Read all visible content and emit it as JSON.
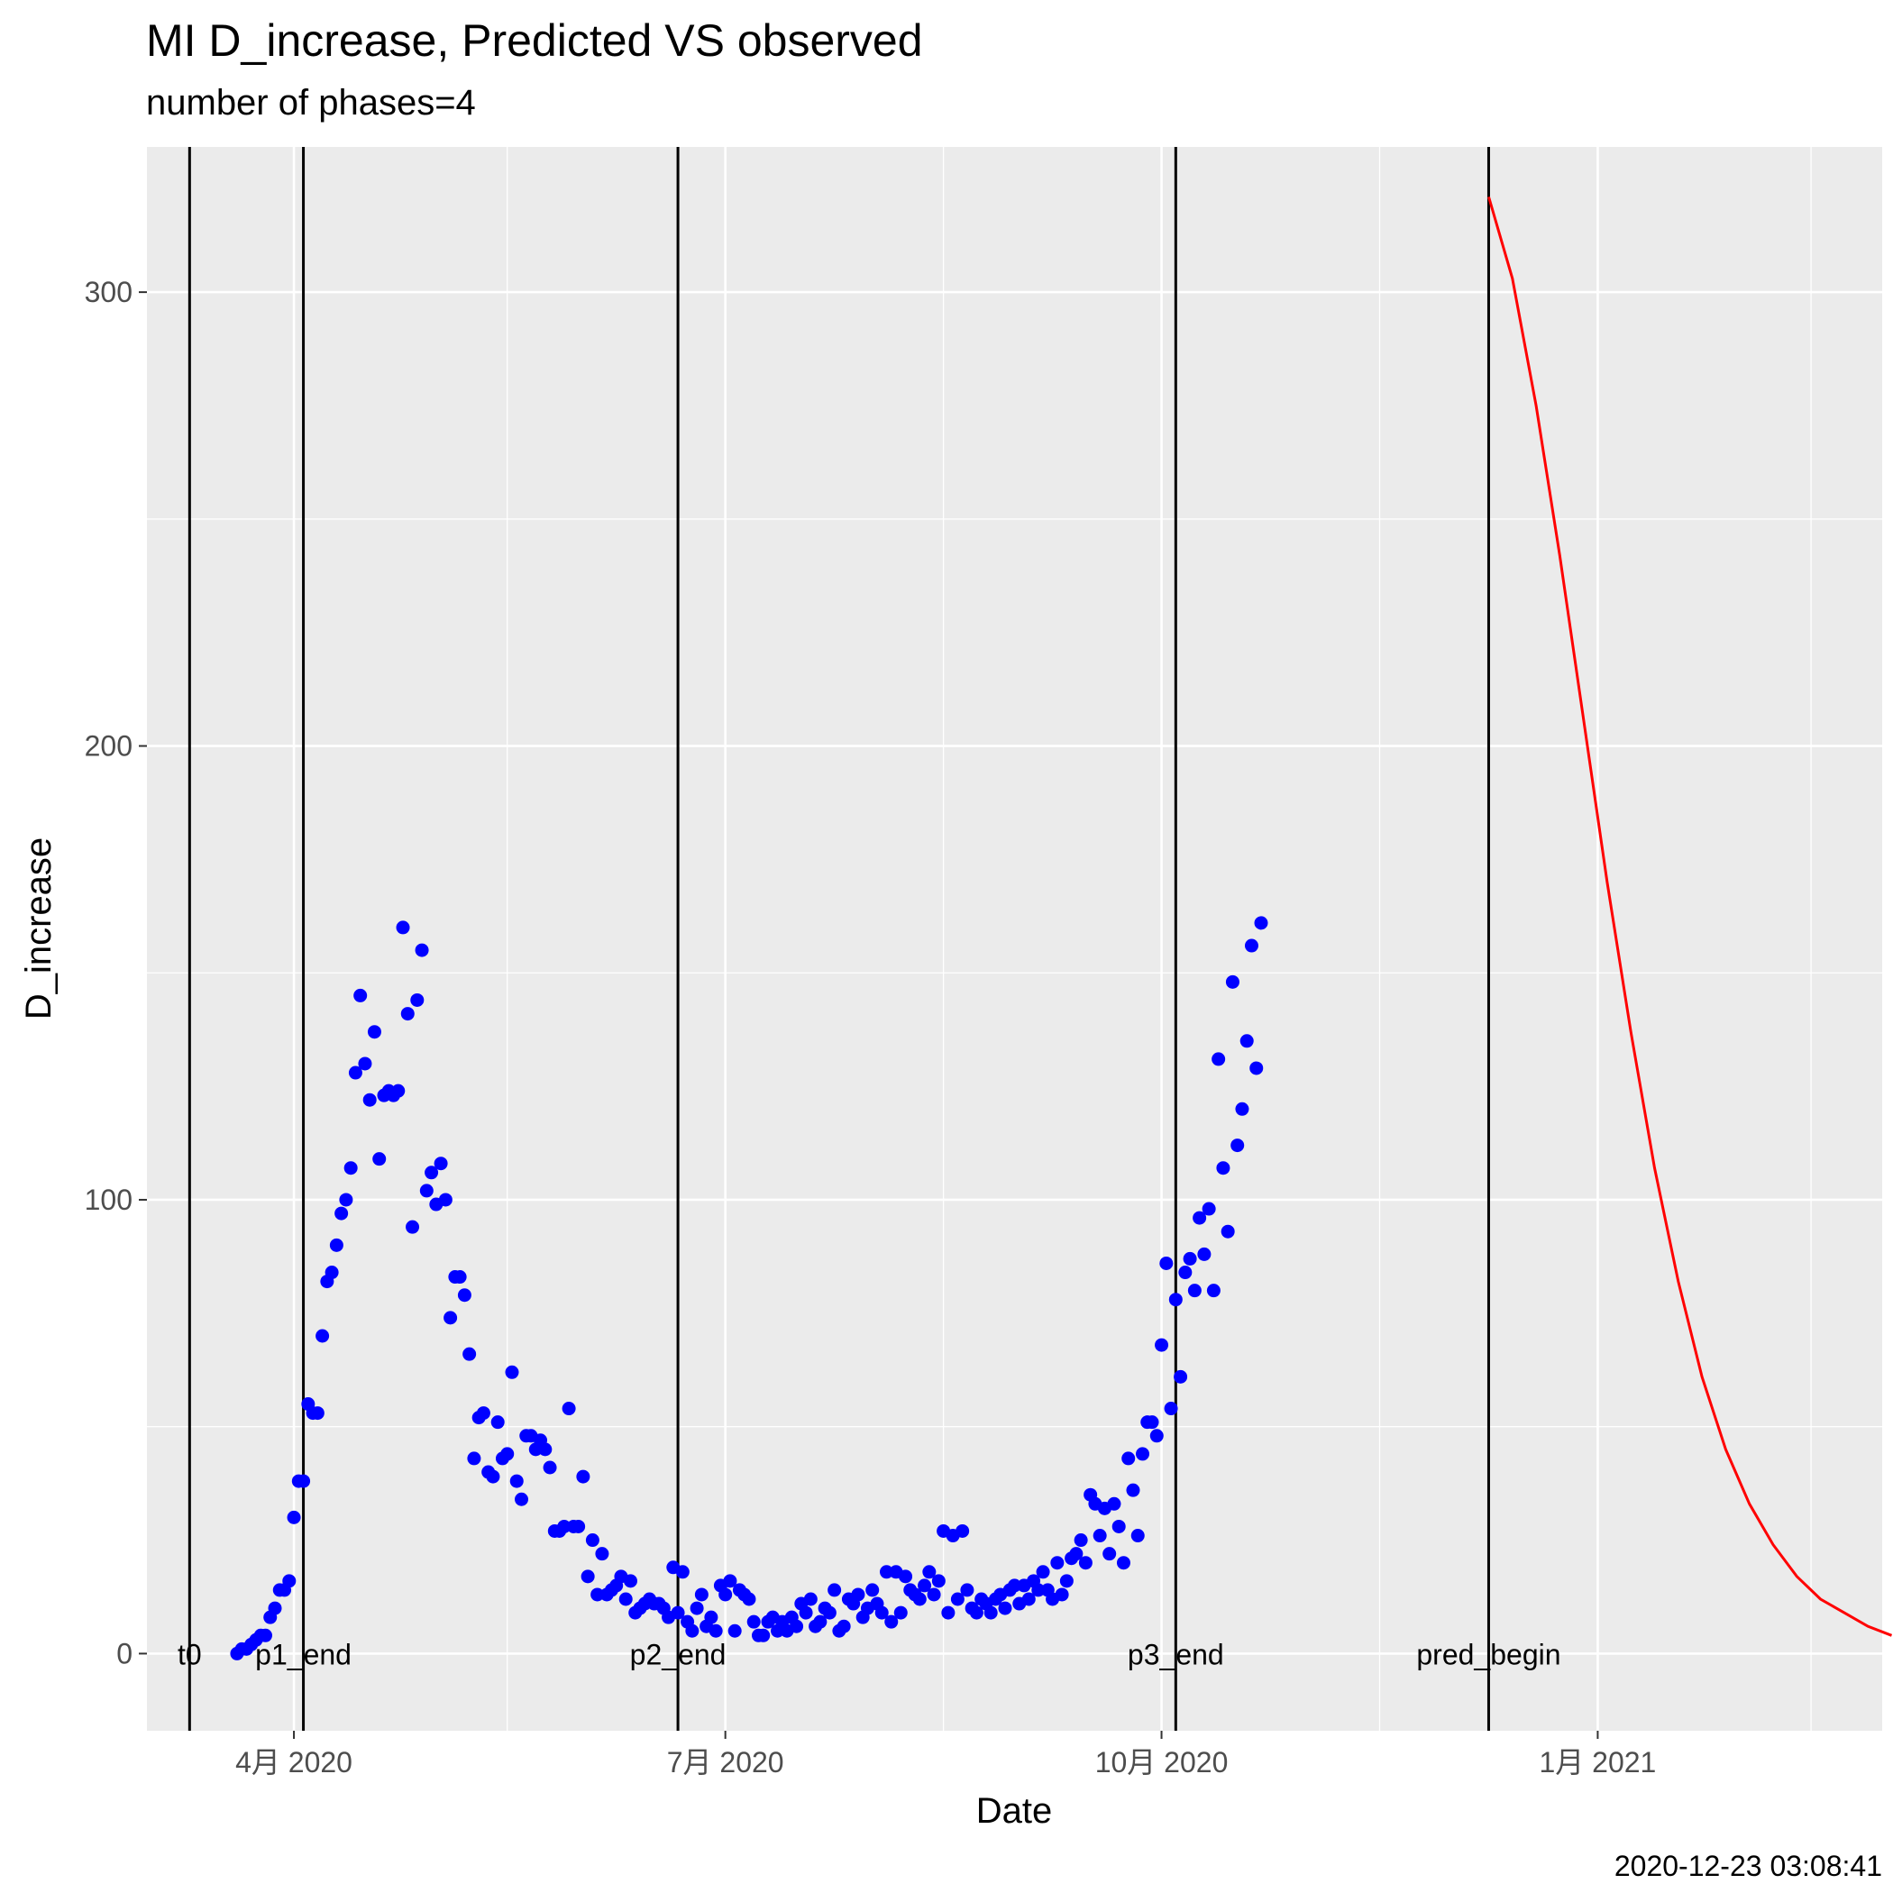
{
  "chart_data": {
    "type": "scatter",
    "title": "MI D_increase, Predicted VS observed",
    "subtitle": "number of phases=4",
    "xlabel": "Date",
    "ylabel": "D_increase",
    "timestamp": "2020-12-23 03:08:41",
    "xlim": [
      "2020-03-01",
      "2021-03-02"
    ],
    "ylim": [
      -17,
      332
    ],
    "y_ticks": [
      0,
      100,
      200,
      300
    ],
    "x_ticks": [
      {
        "date": "2020-04-01",
        "label": "4月 2020"
      },
      {
        "date": "2020-07-01",
        "label": "7月 2020"
      },
      {
        "date": "2020-10-01",
        "label": "10月 2020"
      },
      {
        "date": "2021-01-01",
        "label": "1月 2021"
      }
    ],
    "x_minor_ticks": [
      "2020-05-16",
      "2020-08-16",
      "2020-11-16",
      "2021-02-15"
    ],
    "y_minor_ticks": [
      50,
      150,
      250
    ],
    "grid": true,
    "vlines": [
      {
        "date": "2020-03-10",
        "label": "t0"
      },
      {
        "date": "2020-04-03",
        "label": "p1_end"
      },
      {
        "date": "2020-06-21",
        "label": "p2_end"
      },
      {
        "date": "2020-10-04",
        "label": "p3_end"
      },
      {
        "date": "2020-12-09",
        "label": "pred_begin"
      }
    ],
    "series": [
      {
        "kind": "points",
        "color": "#0000ff",
        "start_date": "2020-03-20",
        "values": [
          0,
          1,
          1,
          2,
          3,
          4,
          4,
          8,
          10,
          14,
          14,
          16,
          30,
          38,
          38,
          55,
          53,
          53,
          70,
          82,
          84,
          90,
          97,
          100,
          107,
          128,
          145,
          130,
          122,
          137,
          109,
          123,
          124,
          123,
          124,
          160,
          141,
          94,
          144,
          155,
          102,
          106,
          99,
          108,
          100,
          74,
          83,
          83,
          79,
          66,
          43,
          52,
          53,
          40,
          39,
          51,
          43,
          44,
          62,
          38,
          34,
          48,
          48,
          45,
          47,
          45,
          41,
          27,
          27,
          28,
          54,
          28,
          28,
          39,
          17,
          25,
          13,
          22,
          13,
          14,
          15,
          17,
          12,
          16,
          9,
          10,
          11,
          12,
          11,
          11,
          10,
          8,
          19,
          9,
          18,
          7,
          5,
          10,
          13,
          6,
          8,
          5,
          15,
          13,
          16,
          5,
          14,
          13,
          12,
          7,
          4,
          4,
          7,
          8,
          5,
          7,
          5,
          8,
          6,
          11,
          9,
          12,
          6,
          7,
          10,
          9,
          14,
          5,
          6,
          12,
          11,
          13,
          8,
          10,
          14,
          11,
          9,
          18,
          7,
          18,
          9,
          17,
          14,
          13,
          12,
          15,
          18,
          13,
          16,
          27,
          9,
          26,
          12,
          27,
          14,
          10,
          9,
          12,
          11,
          9,
          12,
          13,
          10,
          14,
          15,
          11,
          15,
          12,
          16,
          14,
          18,
          14,
          12,
          20,
          13,
          16,
          21,
          22,
          25,
          20,
          35,
          33,
          26,
          32,
          22,
          33,
          28,
          20,
          43,
          36,
          26,
          44,
          51,
          51,
          48,
          68,
          86,
          54,
          78,
          61,
          84,
          87,
          80,
          96,
          88,
          98,
          80,
          131,
          107,
          93,
          148,
          112,
          120,
          135,
          156,
          129,
          161
        ]
      },
      {
        "kind": "line",
        "color": "#ff0000",
        "start_date": "2020-12-09",
        "step_days": 5,
        "values": [
          321,
          303,
          275,
          242,
          206,
          170,
          137,
          107,
          82,
          61,
          45,
          33,
          24,
          17,
          12,
          9,
          6,
          4
        ]
      }
    ]
  }
}
